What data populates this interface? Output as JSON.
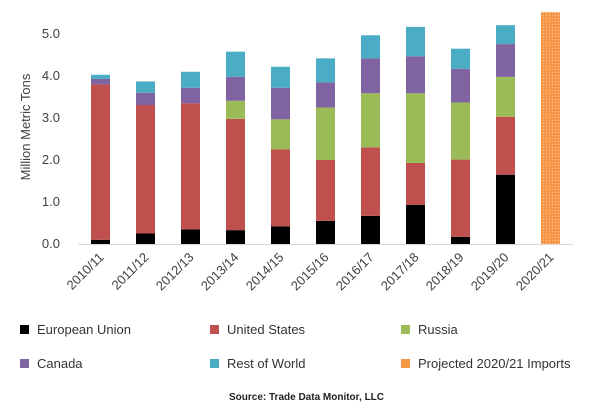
{
  "chart_data": {
    "type": "stacked-bar",
    "ylabel": "Million Metric Tons",
    "ylim": [
      0,
      5.5
    ],
    "yticks": [
      "0.0",
      "1.0",
      "2.0",
      "3.0",
      "4.0",
      "5.0"
    ],
    "categories": [
      "2010/11",
      "2011/12",
      "2012/13",
      "2013/14",
      "2014/15",
      "2015/16",
      "2016/17",
      "2017/18",
      "2018/19",
      "2019/20",
      "2020/21"
    ],
    "series": [
      {
        "name": "European Union",
        "color": "#000000",
        "values": [
          0.1,
          0.25,
          0.35,
          0.33,
          0.42,
          0.55,
          0.67,
          0.93,
          0.17,
          1.65,
          0
        ]
      },
      {
        "name": "United States",
        "color": "#c0504d",
        "values": [
          3.7,
          3.06,
          3.0,
          2.65,
          1.83,
          1.45,
          1.63,
          1.0,
          1.84,
          1.38,
          0
        ]
      },
      {
        "name": "Russia",
        "color": "#9bbb59",
        "values": [
          0,
          0,
          0,
          0.43,
          0.72,
          1.25,
          1.29,
          1.66,
          1.36,
          0.95,
          0
        ]
      },
      {
        "name": "Canada",
        "color": "#8064a2",
        "values": [
          0.13,
          0.29,
          0.37,
          0.57,
          0.75,
          0.6,
          0.83,
          0.88,
          0.8,
          0.78,
          0
        ]
      },
      {
        "name": "Rest of World",
        "color": "#4bacc6",
        "values": [
          0.1,
          0.27,
          0.38,
          0.6,
          0.5,
          0.57,
          0.55,
          0.7,
          0.48,
          0.45,
          0
        ]
      },
      {
        "name": "Projected 2020/21 Imports",
        "color": "#f79646",
        "values": [
          0,
          0,
          0,
          0,
          0,
          0,
          0,
          0,
          0,
          0,
          5.52
        ]
      }
    ]
  },
  "source": "Source: Trade Data Monitor, LLC"
}
